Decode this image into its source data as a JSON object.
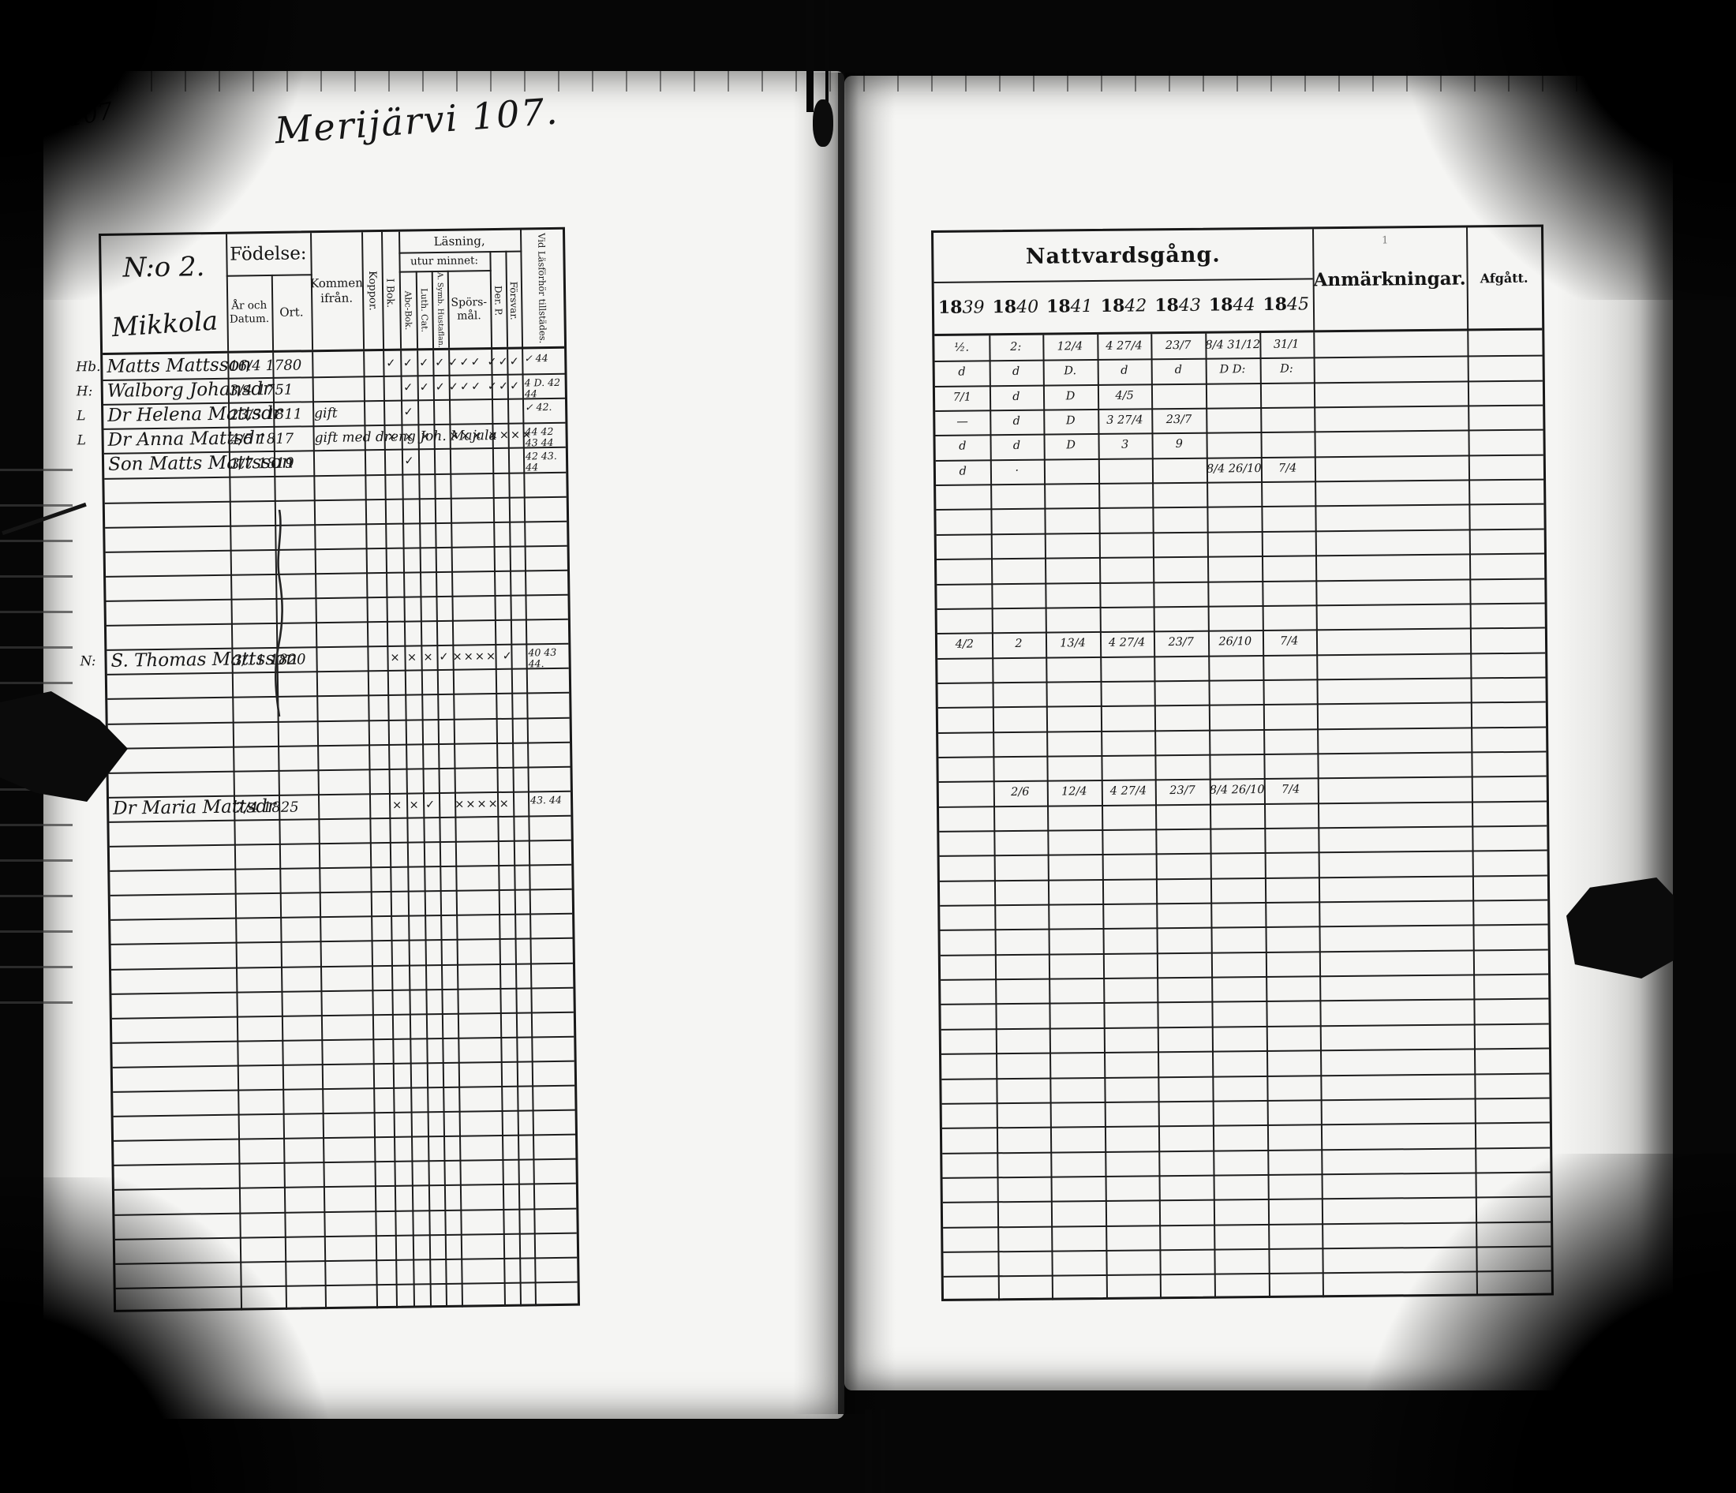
{
  "page": {
    "page_number": "107",
    "heading": "Merijärvi 107.",
    "household_no": "N:o 2.",
    "household_name": "Mikkola"
  },
  "left_table": {
    "fodelse": "Födelse:",
    "ar_och_datum": "År och Datum.",
    "ort": "Ort.",
    "kommen_ifran": "Kommen ifrån.",
    "koppor": "Koppor.",
    "i_bok": "I Bok.",
    "lasning": "Läsning,",
    "utur_minnet": "utur minnet:",
    "abc_bok": "Abc-Bok.",
    "luth_cat": "Luth. Cat.",
    "symb_hustaflan": "A. Symb. Hustaflan.",
    "sporsmal": "Spörs-mål.",
    "der_p": "Der. P.",
    "forsvar": "Försvar.",
    "vid_lasforhor": "Vid Läsförhör tillstädes."
  },
  "right_table": {
    "title": "Nattvardsgång.",
    "year_prefix": "18",
    "year_suffixes": [
      "39",
      "40",
      "41",
      "42",
      "43",
      "44",
      "45"
    ],
    "anm_index": "1",
    "anmarkningar": "Anmärkningar.",
    "afgatt": "Afgått."
  },
  "grid": {
    "rows": 39
  },
  "records": [
    {
      "row": 0,
      "margin": "Hb.",
      "name": "Matts Mattsson",
      "date": "16/4 1780",
      "kommen": "",
      "reading": [
        "✓",
        "✓",
        "✓",
        "✓",
        "✓✓✓ ✓✓✓",
        "",
        ""
      ],
      "forhor": "✓ 44",
      "communion": [
        "½.",
        "2:",
        "12/4",
        "4 27/4",
        "23/7",
        "8/4 31/12",
        "31/1"
      ],
      "anm": ""
    },
    {
      "row": 1,
      "margin": "H:",
      "name": "Walborg Johansdr",
      "date": "3/4 1751",
      "kommen": "",
      "reading": [
        "",
        "✓",
        "✓",
        "✓",
        "✓✓✓ ✓✓✓",
        "",
        ""
      ],
      "forhor": "4 D. 42 44",
      "communion": [
        "d",
        "d",
        "D.",
        "d",
        "d",
        "D D:",
        "D:"
      ],
      "anm": ""
    },
    {
      "row": 2,
      "margin": "L",
      "name": "Dr Helena Mattsdr",
      "date": "23/3 1811",
      "kommen": "gift",
      "reading": [
        "",
        "✓",
        "",
        "",
        "",
        "",
        ""
      ],
      "forhor": "✓ 42.",
      "communion": [
        "7/1",
        "d",
        "D",
        "4/5",
        "",
        "",
        ""
      ],
      "anm": ""
    },
    {
      "row": 3,
      "margin": "L",
      "name": "Dr Anna Mattsdr",
      "date": "4/5 1817",
      "kommen": "gift med dreng Joh. Majala",
      "reading": [
        "×",
        "×",
        "×",
        "",
        "××× ××××",
        "",
        ""
      ],
      "forhor": "44 42 43 44",
      "communion": [
        "—",
        "d",
        "D",
        "3 27/4",
        "23/7",
        "",
        ""
      ],
      "anm": ""
    },
    {
      "row": 4,
      "margin": "",
      "name": "Son Matts Mattsson",
      "date": "3/7 1819",
      "kommen": "",
      "reading": [
        "",
        "✓",
        "",
        "",
        "",
        "",
        ""
      ],
      "forhor": "42 43. 44",
      "communion": [
        "d",
        "d",
        "D",
        "3",
        "9",
        "",
        ""
      ],
      "anm": ""
    },
    {
      "row": 5,
      "margin": "",
      "name": "",
      "date": "",
      "kommen": "",
      "reading": [
        "",
        "",
        "",
        "",
        "",
        "",
        ""
      ],
      "forhor": "",
      "communion": [
        "d",
        "·",
        "",
        "",
        "",
        "8/4 26/10",
        "7/4"
      ],
      "anm": ""
    },
    {
      "row": 12,
      "margin": "N:",
      "name": "S. Thomas Mattsson",
      "date": "3/11 1820",
      "kommen": "",
      "reading": [
        "×",
        "×",
        "×",
        "✓",
        "×××× ✓",
        "",
        ""
      ],
      "forhor": "40 43 44.",
      "communion": [
        "4/2",
        "2",
        "13/4",
        "4 27/4",
        "23/7",
        "26/10",
        "7/4"
      ],
      "anm": ""
    },
    {
      "row": 18,
      "margin": "",
      "name": "Dr Maria Mattsdr",
      "date": "7/4 1825",
      "kommen": "",
      "reading": [
        "×",
        "×",
        "✓",
        "",
        "×××××",
        "",
        ""
      ],
      "forhor": "43. 44",
      "communion": [
        "",
        "2/6",
        "12/4",
        "4 27/4",
        "23/7",
        "8/4 26/10",
        "7/4"
      ],
      "anm": ""
    }
  ],
  "colors": {
    "ink": "#1a1a1a",
    "paper": "#f5f5f3",
    "background": "#060606"
  },
  "artifacts": {
    "left_clasp": "book-clasp",
    "right_clasp": "book-clasp",
    "binding_thread_top": "binding-thread",
    "binding_thread_bottom": "binding-thread",
    "margin_squiggle": "vertical-squiggle"
  }
}
